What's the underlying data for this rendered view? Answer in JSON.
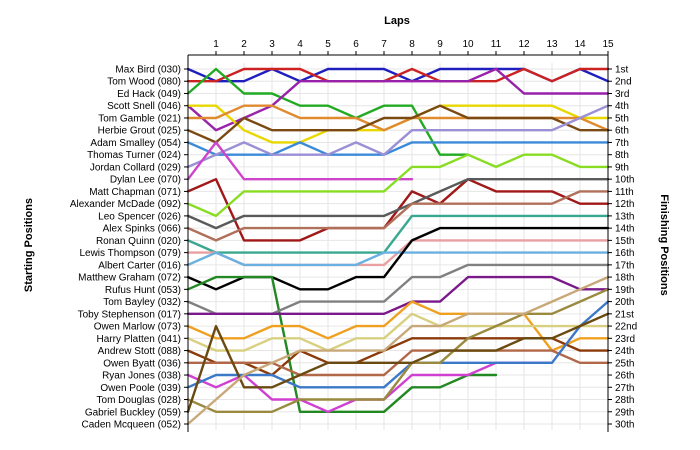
{
  "chart_data": {
    "type": "line",
    "title": "Laps",
    "ylabel_left": "Starting Positions",
    "ylabel_right": "Finishing Positions",
    "laps": [
      1,
      2,
      3,
      4,
      5,
      6,
      7,
      8,
      9,
      10,
      11,
      12,
      13,
      14,
      15
    ],
    "starting_labels": [
      "Max Bird (030)",
      "Tom Wood (080)",
      "Ed Hack (049)",
      "Scott Snell (046)",
      "Tom Gamble (021)",
      "Herbie Grout (025)",
      "Adam Smalley (054)",
      "Thomas Turner (024)",
      "Jordan Collard (029)",
      "Dylan Lee (070)",
      "Matt Chapman (071)",
      "Alexander McDade (092)",
      "Leo Spencer (026)",
      "Alex Spinks (066)",
      "Ronan Quinn (020)",
      "Lewis Thompson (079)",
      "Albert Carter (016)",
      "Matthew Graham (072)",
      "Rufus Hunt (053)",
      "Tom Bayley (032)",
      "Toby Stephenson (017)",
      "Owen Marlow (073)",
      "Harry Platten (041)",
      "Andrew Stott (088)",
      "Owen Byatt (036)",
      "Ryan Jones (038)",
      "Owen Poole (039)",
      "Tom Douglas (028)",
      "Gabriel Buckley (059)",
      "Caden Mcqueen (052)"
    ],
    "finishing_labels": [
      "1st",
      "2nd",
      "3rd",
      "4th",
      "5th",
      "6th",
      "7th",
      "8th",
      "9th",
      "10th",
      "11th",
      "12th",
      "13th",
      "14th",
      "15th",
      "16th",
      "17th",
      "18th",
      "19th",
      "20th",
      "21st",
      "22nd",
      "23rd",
      "24th",
      "25th",
      "26th",
      "27th",
      "28th",
      "29th",
      "30th"
    ],
    "finishing_positions_shown": [
      1,
      2,
      3,
      4,
      5,
      6,
      7,
      8,
      9,
      10,
      11,
      12,
      13,
      14,
      15,
      16,
      17,
      18,
      19,
      20,
      21,
      22,
      23,
      24,
      25,
      26,
      27,
      28,
      29,
      30
    ],
    "ylim": [
      1,
      30
    ],
    "grid": true,
    "series": [
      {
        "color": "#1f1fbf",
        "positions": [
          1,
          2,
          2,
          1,
          2,
          1,
          1,
          1,
          2,
          1,
          1,
          1,
          1,
          2,
          1,
          2
        ]
      },
      {
        "color": "#cc2222",
        "positions": [
          2,
          2,
          1,
          1,
          1,
          2,
          2,
          2,
          1,
          2,
          2,
          2,
          1,
          2,
          1,
          1
        ]
      },
      {
        "color": "#22aa22",
        "positions": [
          3,
          1,
          3,
          3,
          4,
          4,
          5,
          4,
          4,
          8,
          8
        ]
      },
      {
        "color": "#9922aa",
        "positions": [
          4,
          6,
          5,
          4,
          2,
          2,
          2,
          2,
          2,
          2,
          2,
          1,
          3,
          3,
          3,
          3
        ]
      },
      {
        "color": "#e8d800",
        "positions": [
          4,
          4,
          6,
          7,
          7,
          6,
          6,
          6,
          5,
          4,
          4,
          4,
          4,
          4,
          5,
          5
        ]
      },
      {
        "color": "#e08a30",
        "positions": [
          5,
          5,
          4,
          4,
          5,
          5,
          5,
          6,
          5,
          5,
          5,
          5,
          5,
          5,
          5,
          6
        ]
      },
      {
        "color": "#7b4a12",
        "positions": [
          6,
          7,
          5,
          6,
          6,
          6,
          6,
          5,
          5,
          4,
          5,
          5,
          5,
          5,
          6,
          6
        ]
      },
      {
        "color": "#3c8ad8",
        "positions": [
          7,
          8,
          8,
          8,
          7,
          8,
          8,
          8,
          7,
          7,
          7,
          7,
          7,
          7,
          7,
          7
        ]
      },
      {
        "color": "#9b8fd6",
        "positions": [
          9,
          8,
          7,
          8,
          8,
          8,
          7,
          8,
          6,
          6,
          6,
          6,
          6,
          6,
          5,
          4
        ]
      },
      {
        "color": "#cc44cc",
        "positions": [
          10,
          7,
          10,
          10,
          10,
          10,
          10,
          10,
          10
        ]
      },
      {
        "color": "#a01818",
        "positions": [
          11,
          10,
          15,
          15,
          15,
          14,
          14,
          14,
          11,
          12,
          10,
          11,
          11,
          11,
          12,
          12
        ]
      },
      {
        "color": "#88dd22",
        "positions": [
          12,
          13,
          11,
          11,
          11,
          11,
          11,
          11,
          9,
          9,
          8,
          9,
          8,
          8,
          9,
          9
        ]
      },
      {
        "color": "#5a5a5a",
        "positions": [
          13,
          14,
          13,
          13,
          13,
          13,
          13,
          13,
          12,
          11,
          10,
          10,
          10,
          10,
          10,
          10
        ]
      },
      {
        "color": "#3aa890",
        "positions": [
          15,
          16,
          16,
          16,
          16,
          16,
          16,
          16,
          13,
          13,
          13,
          13,
          13,
          13,
          13,
          13
        ]
      },
      {
        "color": "#b0705a",
        "positions": [
          14,
          15,
          14,
          14,
          14,
          14,
          14,
          14,
          12,
          12,
          12,
          12,
          12,
          12,
          11,
          11
        ]
      },
      {
        "color": "#e8a0a0",
        "positions": [
          16,
          16,
          17,
          17,
          17,
          17,
          17,
          17,
          15,
          15,
          15,
          15,
          15,
          15,
          15,
          15
        ]
      },
      {
        "color": "#6ab0e0",
        "positions": [
          17,
          16,
          17,
          17,
          17,
          17,
          17,
          16,
          16,
          16,
          16,
          16,
          16,
          16,
          16,
          16
        ]
      },
      {
        "color": "#000000",
        "positions": [
          18,
          19,
          18,
          18,
          19,
          19,
          18,
          18,
          15,
          14,
          14,
          14,
          14,
          14,
          14,
          14
        ]
      },
      {
        "color": "#228822",
        "positions": [
          19,
          18,
          18,
          18,
          29,
          29,
          29,
          29,
          27,
          27,
          26,
          26
        ]
      },
      {
        "color": "#808080",
        "positions": [
          20,
          21,
          21,
          21,
          20,
          20,
          20,
          20,
          18,
          18,
          17,
          17,
          17,
          17,
          17,
          17
        ]
      },
      {
        "color": "#7a1a8a",
        "positions": [
          21,
          21,
          21,
          21,
          21,
          21,
          21,
          21,
          20,
          20,
          18,
          18,
          18,
          18,
          19,
          19
        ]
      },
      {
        "color": "#f0a020",
        "positions": [
          22,
          23,
          23,
          22,
          22,
          23,
          22,
          22,
          20,
          21,
          21,
          21,
          21,
          24,
          23,
          23
        ]
      },
      {
        "color": "#d8d080",
        "positions": [
          23,
          24,
          24,
          23,
          23,
          24,
          23,
          23,
          21,
          22,
          22,
          22,
          22,
          22,
          22,
          22
        ]
      },
      {
        "color": "#8b3a0a",
        "positions": [
          24,
          25,
          25,
          26,
          24,
          25,
          25,
          24,
          23,
          23,
          23,
          23,
          23,
          23,
          24,
          24
        ]
      },
      {
        "color": "#b06848",
        "positions": [
          25,
          25,
          25,
          25,
          26,
          26,
          26,
          26,
          24,
          24,
          24,
          24,
          24,
          24,
          25,
          25
        ]
      },
      {
        "color": "#d040d0",
        "positions": [
          26,
          27,
          26,
          28,
          28,
          29,
          28,
          28,
          26,
          26,
          26,
          25,
          25,
          25
        ]
      },
      {
        "color": "#3c78c8",
        "positions": [
          27,
          26,
          26,
          26,
          27,
          27,
          27,
          27,
          25,
          25,
          25,
          25,
          25,
          25,
          22,
          20
        ]
      },
      {
        "color": "#9a8a40",
        "positions": [
          28,
          29,
          29,
          29,
          28,
          28,
          28,
          28,
          25,
          25,
          23,
          22,
          21,
          21,
          20,
          19
        ]
      },
      {
        "color": "#6a4a10",
        "positions": [
          29,
          22,
          27,
          27,
          26,
          25,
          25,
          25,
          25,
          24,
          24,
          24,
          23,
          23,
          22,
          21
        ]
      },
      {
        "color": "#c8a878",
        "positions": [
          30,
          28,
          26,
          25,
          24,
          24,
          24,
          24,
          22,
          22,
          21,
          21,
          21,
          20,
          19,
          18
        ]
      }
    ]
  }
}
